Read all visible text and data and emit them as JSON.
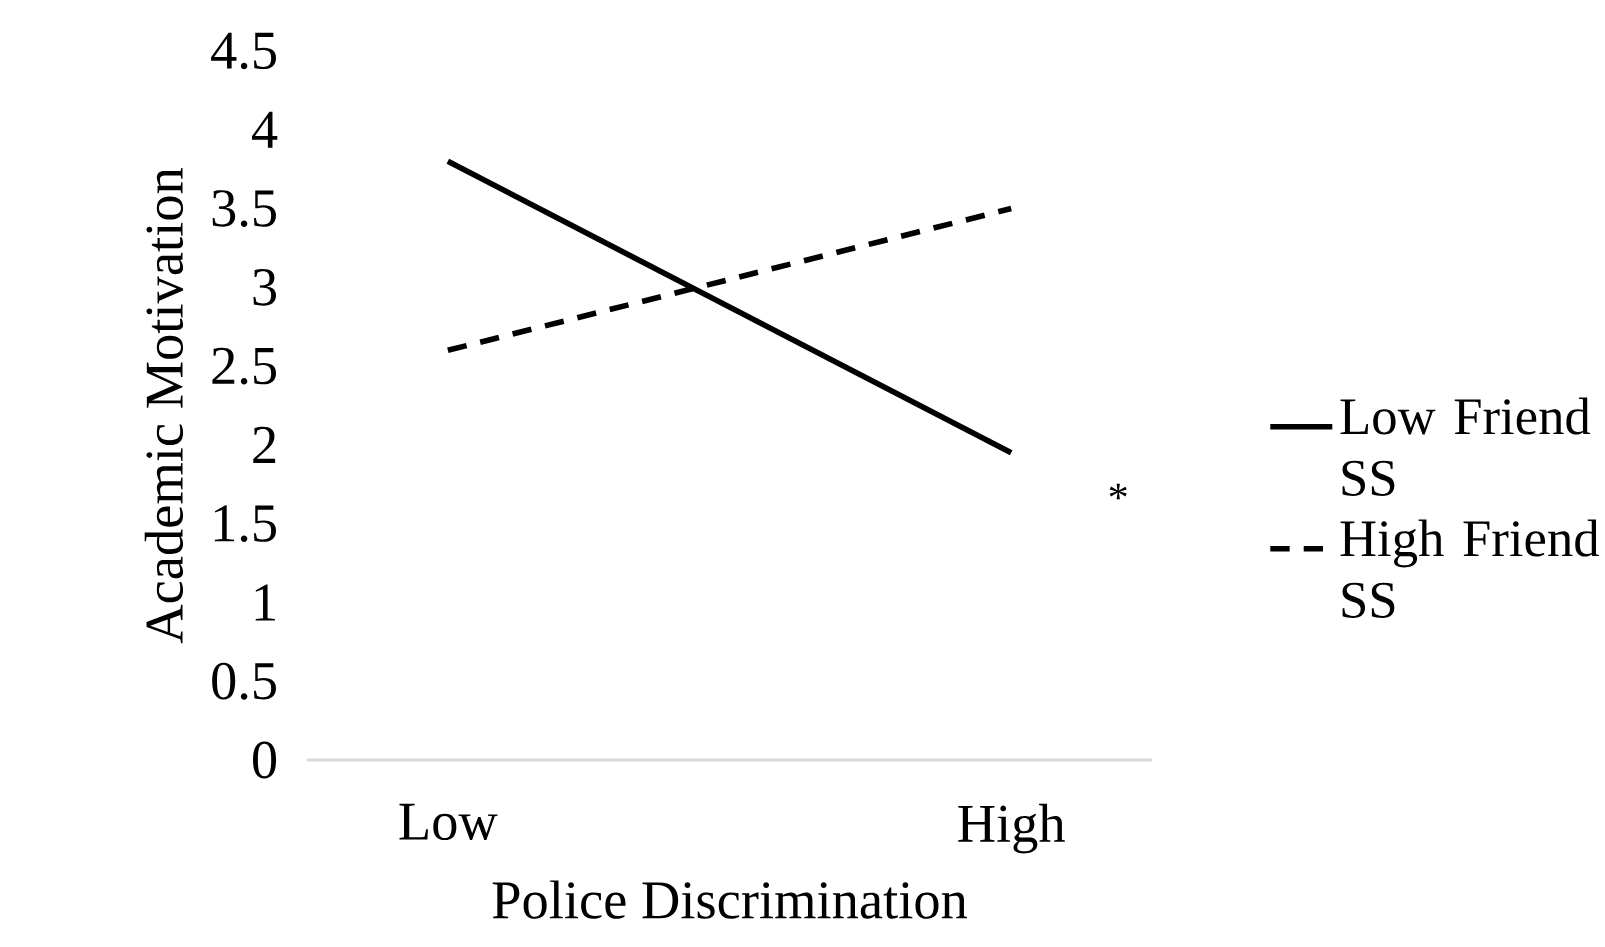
{
  "chart_data": {
    "type": "line",
    "xlabel": "Police Discrimination",
    "ylabel": "Academic Motivation",
    "categories": [
      "Low",
      "High"
    ],
    "series": [
      {
        "name": "Low Friend SS",
        "color": "#000000",
        "values": [
          3.8,
          1.95
        ],
        "line_style": "solid"
      },
      {
        "name": "High  Friend SS",
        "color": "#000000",
        "values": [
          2.6,
          3.5
        ],
        "line_style": "dashed"
      }
    ],
    "ylim": [
      0,
      4.5
    ],
    "yticks": [
      0,
      0.5,
      1,
      1.5,
      2,
      2.5,
      3,
      3.5,
      4,
      4.5
    ],
    "grid": false,
    "legend": "right",
    "marker": "none",
    "annotations": [
      "*"
    ]
  }
}
